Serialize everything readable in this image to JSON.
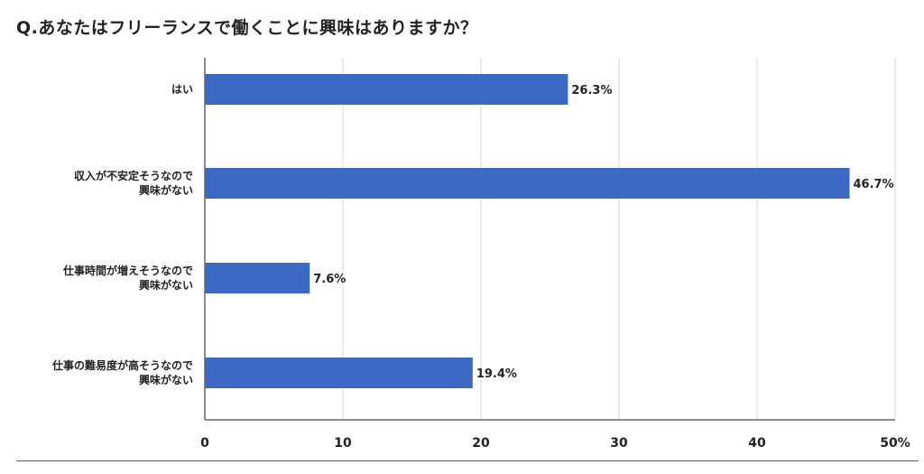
{
  "chart_data": {
    "type": "bar",
    "orientation": "horizontal",
    "title": "Q.あなたはフリーランスで働くことに興味はありますか？",
    "categories": [
      [
        "はい"
      ],
      [
        "収入が不安定そうなので",
        "興味がない"
      ],
      [
        "仕事時間が増えそうなので",
        "興味がない"
      ],
      [
        "仕事の難易度が高そうなので",
        "興味がない"
      ]
    ],
    "values": [
      26.3,
      46.7,
      7.6,
      19.4
    ],
    "data_labels": [
      "26.3%",
      "46.7%",
      "7.6%",
      "19.4%"
    ],
    "xlim": [
      0,
      50
    ],
    "x_ticks": [
      0,
      10,
      20,
      30,
      40,
      50
    ],
    "x_tick_labels": [
      "0",
      "10",
      "20",
      "30",
      "40",
      "50%"
    ],
    "xlabel": "",
    "ylabel": "",
    "grid": "vertical",
    "bar_color": "#3b69c4",
    "grid_color": "#d9d9d9",
    "axis_color": "#666666"
  }
}
